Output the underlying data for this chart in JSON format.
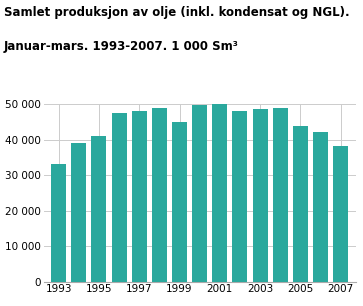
{
  "title_line1": "Samlet produksjon av olje (inkl. kondensat og NGL).",
  "title_line2": "Januar-mars. 1993-2007. 1 000 Sm³",
  "years": [
    1993,
    1994,
    1995,
    1996,
    1997,
    1998,
    1999,
    2000,
    2001,
    2002,
    2003,
    2004,
    2005,
    2006,
    2007
  ],
  "values": [
    33000,
    39000,
    41000,
    47500,
    48000,
    48800,
    45000,
    49700,
    49900,
    48000,
    48700,
    48800,
    43700,
    42000,
    38300
  ],
  "bar_color": "#2aa89d",
  "ylim": [
    0,
    50000
  ],
  "yticks": [
    0,
    10000,
    20000,
    30000,
    40000,
    50000
  ],
  "xtick_years": [
    1993,
    1995,
    1997,
    1999,
    2001,
    2003,
    2005,
    2007
  ],
  "background_color": "#ffffff",
  "grid_color": "#cccccc",
  "title_fontsize": 8.5,
  "tick_fontsize": 7.5
}
